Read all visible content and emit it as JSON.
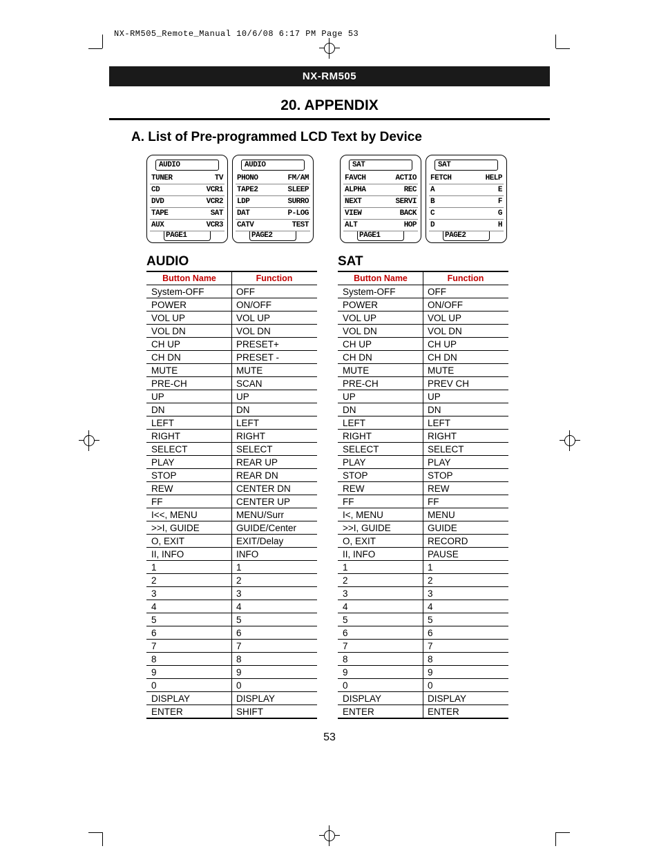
{
  "header": {
    "file_stamp": "NX-RM505_Remote_Manual  10/6/08  6:17 PM  Page 53",
    "model": "NX-RM505",
    "section": "20. APPENDIX",
    "subhead": "A.   List of Pre-programmed LCD Text by Device"
  },
  "lcd_screens": [
    {
      "title": "AUDIO",
      "rows": [
        [
          "TUNER",
          "TV"
        ],
        [
          "CD",
          "VCR1"
        ],
        [
          "DVD",
          "VCR2"
        ],
        [
          "TAPE",
          "SAT"
        ],
        [
          "AUX",
          "VCR3"
        ]
      ],
      "footer": "PAGE1"
    },
    {
      "title": "AUDIO",
      "rows": [
        [
          "PHONO",
          "FM/AM"
        ],
        [
          "TAPE2",
          "SLEEP"
        ],
        [
          "LDP",
          "SURRO"
        ],
        [
          "DAT",
          "P-LOG"
        ],
        [
          "CATV",
          "TEST"
        ]
      ],
      "footer": "PAGE2"
    },
    {
      "title": "SAT",
      "rows": [
        [
          "FAVCH",
          "ACTIO"
        ],
        [
          "ALPHA",
          "REC"
        ],
        [
          "NEXT",
          "SERVI"
        ],
        [
          "VIEW",
          "BACK"
        ],
        [
          "ALT",
          "HOP"
        ]
      ],
      "footer": "PAGE1"
    },
    {
      "title": "SAT",
      "rows": [
        [
          "FETCH",
          "HELP"
        ],
        [
          "A",
          "E"
        ],
        [
          "B",
          "F"
        ],
        [
          "C",
          "G"
        ],
        [
          "D",
          "H"
        ]
      ],
      "footer": "PAGE2"
    }
  ],
  "tables": {
    "header_left": "Button Name",
    "header_right": "Function",
    "audio": {
      "title": "AUDIO",
      "rows": [
        [
          "System-OFF",
          "OFF"
        ],
        [
          "POWER",
          "ON/OFF"
        ],
        [
          "VOL UP",
          "VOL UP"
        ],
        [
          "VOL DN",
          "VOL DN"
        ],
        [
          "CH   UP",
          "PRESET+"
        ],
        [
          "CH   DN",
          "PRESET -"
        ],
        [
          "MUTE",
          "MUTE"
        ],
        [
          "PRE-CH",
          "SCAN"
        ],
        [
          "UP",
          "UP"
        ],
        [
          "DN",
          "DN"
        ],
        [
          "LEFT",
          "LEFT"
        ],
        [
          "RIGHT",
          "RIGHT"
        ],
        [
          "SELECT",
          "SELECT"
        ],
        [
          "PLAY",
          "REAR UP"
        ],
        [
          "STOP",
          "REAR DN"
        ],
        [
          "REW",
          "CENTER DN"
        ],
        [
          "FF",
          "CENTER UP"
        ],
        [
          "I<<, MENU",
          "MENU/Surr"
        ],
        [
          ">>I, GUIDE",
          "GUIDE/Center"
        ],
        [
          "O, EXIT",
          "EXIT/Delay"
        ],
        [
          "II, INFO",
          "INFO"
        ],
        [
          "1",
          "1"
        ],
        [
          "2",
          "2"
        ],
        [
          "3",
          "3"
        ],
        [
          "4",
          "4"
        ],
        [
          "5",
          "5"
        ],
        [
          "6",
          "6"
        ],
        [
          "7",
          "7"
        ],
        [
          "8",
          "8"
        ],
        [
          "9",
          "9"
        ],
        [
          "0",
          "0"
        ],
        [
          "DISPLAY",
          "DISPLAY"
        ],
        [
          "ENTER",
          "SHIFT"
        ]
      ]
    },
    "sat": {
      "title": "SAT",
      "rows": [
        [
          "System-OFF",
          "OFF"
        ],
        [
          "POWER",
          "ON/OFF"
        ],
        [
          "VOL UP",
          "VOL UP"
        ],
        [
          "VOL DN",
          "VOL DN"
        ],
        [
          "CH   UP",
          "CH UP"
        ],
        [
          "CH   DN",
          "CH DN"
        ],
        [
          "MUTE",
          "MUTE"
        ],
        [
          "PRE-CH",
          "PREV CH"
        ],
        [
          "UP",
          "UP"
        ],
        [
          "DN",
          "DN"
        ],
        [
          "LEFT",
          "LEFT"
        ],
        [
          "RIGHT",
          "RIGHT"
        ],
        [
          "SELECT",
          "SELECT"
        ],
        [
          "PLAY",
          "PLAY"
        ],
        [
          "STOP",
          "STOP"
        ],
        [
          "REW",
          "REW"
        ],
        [
          "FF",
          "FF"
        ],
        [
          "I<, MENU",
          "MENU"
        ],
        [
          ">>I, GUIDE",
          "GUIDE"
        ],
        [
          "O, EXIT",
          "RECORD"
        ],
        [
          "II,  INFO",
          "PAUSE"
        ],
        [
          "1",
          "1"
        ],
        [
          "2",
          "2"
        ],
        [
          "3",
          "3"
        ],
        [
          "4",
          "4"
        ],
        [
          "5",
          "5"
        ],
        [
          "6",
          "6"
        ],
        [
          "7",
          "7"
        ],
        [
          "8",
          "8"
        ],
        [
          "9",
          "9"
        ],
        [
          "0",
          "0"
        ],
        [
          "DISPLAY",
          "DISPLAY"
        ],
        [
          "ENTER",
          "ENTER"
        ]
      ]
    }
  },
  "page_number": "53",
  "colors": {
    "title_bg": "#1a1a1a",
    "accent_red": "#c00000"
  }
}
